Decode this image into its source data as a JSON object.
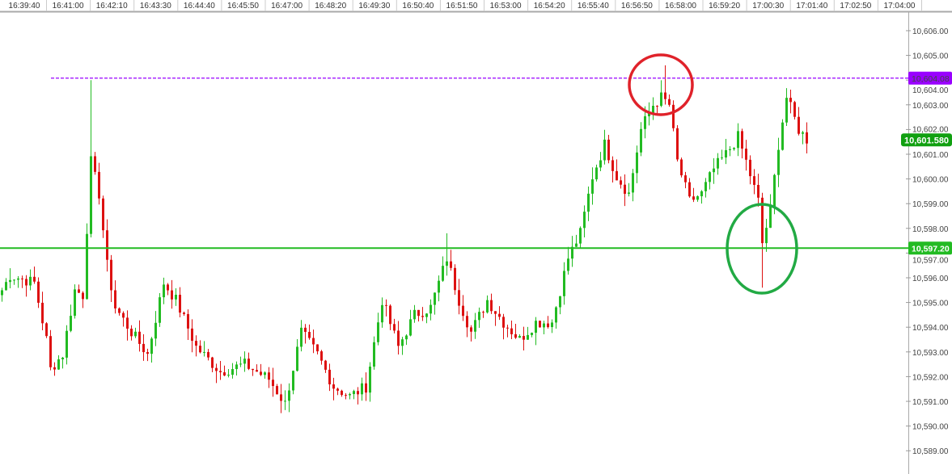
{
  "chart_data": {
    "type": "candlestick",
    "title": "",
    "xlabel": "",
    "ylabel": "",
    "time_ticks": [
      "16:39:40",
      "16:41:00",
      "16:42:10",
      "16:43:30",
      "16:44:40",
      "16:45:50",
      "16:47:00",
      "16:48:20",
      "16:49:30",
      "16:50:40",
      "16:51:50",
      "16:53:00",
      "16:54:20",
      "16:55:40",
      "16:56:50",
      "16:58:00",
      "16:59:20",
      "17:00:30",
      "17:01:40",
      "17:02:50",
      "17:04:00"
    ],
    "price_ticks": [
      "10,606.00",
      "10,605.00",
      "10,604.00",
      "10,603.00",
      "10,602.00",
      "10,601.00",
      "10,600.00",
      "10,599.00",
      "10,598.00",
      "10,597.00",
      "10,596.00",
      "10,595.00",
      "10,594.00",
      "10,593.00",
      "10,592.00",
      "10,591.00",
      "10,590.00",
      "10,589.00"
    ],
    "ylim": [
      10588.4,
      10607.2
    ],
    "grid": false,
    "up_color": "#22bb22",
    "down_color": "#dd1111",
    "close_keypoints_by_candle_index": [
      [
        0,
        10595.5
      ],
      [
        2,
        10596.1
      ],
      [
        8,
        10595.8
      ],
      [
        11,
        10593.5
      ],
      [
        12,
        10592.3
      ],
      [
        15,
        10592.9
      ],
      [
        18,
        10595.5
      ],
      [
        20,
        10595.3
      ],
      [
        22,
        10600.7
      ],
      [
        24,
        10599.4
      ],
      [
        26,
        10596.5
      ],
      [
        28,
        10594.8
      ],
      [
        32,
        10593.8
      ],
      [
        36,
        10592.9
      ],
      [
        40,
        10595.8
      ],
      [
        43,
        10595.1
      ],
      [
        48,
        10593.2
      ],
      [
        54,
        10592.2
      ],
      [
        60,
        10592.5
      ],
      [
        66,
        10591.9
      ],
      [
        70,
        10590.9
      ],
      [
        74,
        10593.8
      ],
      [
        78,
        10592.9
      ],
      [
        82,
        10591.6
      ],
      [
        86,
        10591.2
      ],
      [
        90,
        10591.6
      ],
      [
        94,
        10595.1
      ],
      [
        98,
        10593.2
      ],
      [
        102,
        10594.5
      ],
      [
        106,
        10594.8
      ],
      [
        110,
        10596.8
      ],
      [
        113,
        10595.1
      ],
      [
        116,
        10593.8
      ],
      [
        120,
        10595.1
      ],
      [
        124,
        10594.2
      ],
      [
        128,
        10593.5
      ],
      [
        132,
        10594.2
      ],
      [
        136,
        10594.2
      ],
      [
        140,
        10596.8
      ],
      [
        143,
        10597.8
      ],
      [
        146,
        10600.1
      ],
      [
        149,
        10601.4
      ],
      [
        152,
        10600.1
      ],
      [
        155,
        10599.4
      ],
      [
        158,
        10602.0
      ],
      [
        161,
        10603.0
      ],
      [
        163,
        10603.3
      ],
      [
        165,
        10603.0
      ],
      [
        167,
        10600.7
      ],
      [
        170,
        10599.1
      ],
      [
        173,
        10599.4
      ],
      [
        176,
        10600.4
      ],
      [
        179,
        10601.0
      ],
      [
        182,
        10601.7
      ],
      [
        184,
        10600.7
      ],
      [
        187,
        10599.1
      ],
      [
        188,
        10597.4
      ],
      [
        190,
        10598.7
      ],
      [
        192,
        10601.4
      ],
      [
        194,
        10603.3
      ],
      [
        197,
        10602.0
      ],
      [
        199,
        10601.6
      ]
    ],
    "spikes": [
      {
        "candle": 22,
        "high": 10604.0
      },
      {
        "candle": 110,
        "high": 10597.8
      },
      {
        "candle": 164,
        "high": 10604.6
      },
      {
        "candle": 188,
        "low": 10595.6
      }
    ],
    "horizontal_lines": [
      {
        "price": 10604.08,
        "label": "10,604.08",
        "color": "#9900ff",
        "style": "dashed"
      },
      {
        "price": 10597.2,
        "label": "10,597.20",
        "color": "#22bb22",
        "style": "solid"
      }
    ],
    "last_price": {
      "price": 10601.58,
      "label": "10,601.580",
      "color": "#11a011"
    },
    "annotations": [
      {
        "shape": "ellipse",
        "color": "#e0222a",
        "around": "high near 10,604.6 at 16:57:40"
      },
      {
        "shape": "ellipse",
        "color": "#22aa44",
        "around": "low near 10,595.6 at 17:00:00"
      }
    ]
  }
}
